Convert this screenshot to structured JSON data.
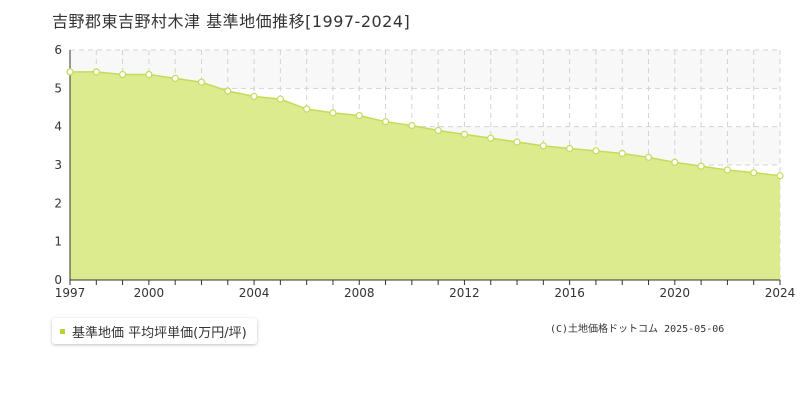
{
  "page_title": "吉野郡東吉野村木津 基準地価推移[1997-2024]",
  "legend_label": "基準地価 平均坪単価(万円/坪)",
  "credit": "(C)土地価格ドットコム 2025-05-06",
  "colors": {
    "fill": "#dbeb8e",
    "line": "#c2dc5a",
    "marker_fill": "#ffffff",
    "legend_marker": "#b3d631",
    "band": "#f8f8f8",
    "grid": "#d3d3d3",
    "axis": "#333333"
  },
  "chart_data": {
    "type": "area",
    "title": "吉野郡東吉野村木津 基準地価推移[1997-2024]",
    "xlabel": "",
    "ylabel": "",
    "x": [
      1997,
      1998,
      1999,
      2000,
      2001,
      2002,
      2003,
      2004,
      2005,
      2006,
      2007,
      2008,
      2009,
      2010,
      2011,
      2012,
      2013,
      2014,
      2015,
      2016,
      2017,
      2018,
      2019,
      2020,
      2021,
      2022,
      2023,
      2024
    ],
    "series": [
      {
        "name": "基準地価 平均坪単価(万円/坪)",
        "values": [
          5.43,
          5.43,
          5.36,
          5.36,
          5.26,
          5.16,
          4.93,
          4.79,
          4.72,
          4.46,
          4.36,
          4.29,
          4.13,
          4.03,
          3.9,
          3.8,
          3.7,
          3.6,
          3.5,
          3.43,
          3.37,
          3.3,
          3.2,
          3.07,
          2.97,
          2.87,
          2.8,
          2.72
        ]
      }
    ],
    "xlim": [
      1997,
      2024
    ],
    "ylim": [
      0,
      6
    ],
    "x_ticks": [
      1997,
      2000,
      2004,
      2008,
      2012,
      2016,
      2020,
      2024
    ],
    "y_ticks": [
      0,
      1,
      2,
      3,
      4,
      5,
      6
    ],
    "grid": true,
    "legend_position": "bottom-left"
  }
}
